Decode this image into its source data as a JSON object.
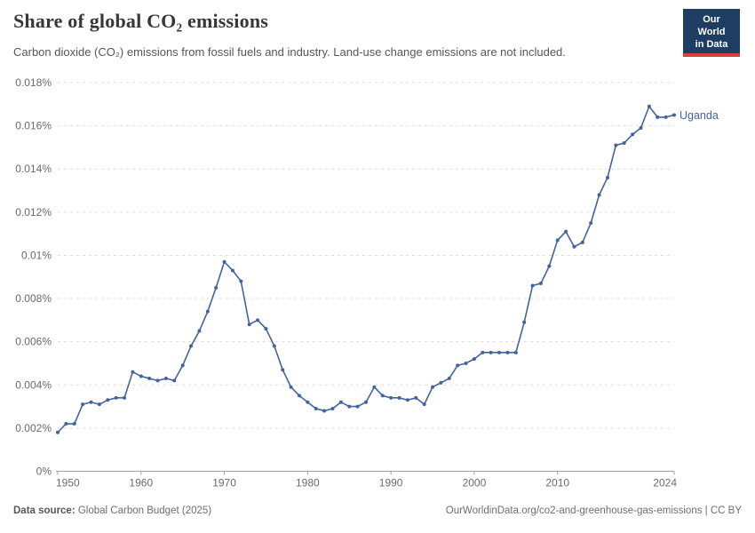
{
  "header": {
    "title": "Share of global CO₂ emissions",
    "subtitle": "Carbon dioxide (CO₂) emissions from fossil fuels and industry. Land-use change emissions are not included.",
    "logo": {
      "line1": "Our World",
      "line2": "in Data",
      "bg_color": "#1d3d63",
      "accent_color": "#d7413a"
    }
  },
  "footer": {
    "source_label": "Data source:",
    "source_value": " Global Carbon Budget (2025)",
    "link_text": "OurWorldinData.org/co2-and-greenhouse-gas-emissions | CC BY"
  },
  "colors": {
    "series_blue": "#44639E",
    "gridline": "#dcdcdc",
    "axis": "#a1a1a1",
    "tick_label": "#6b6b6b"
  },
  "chart_data": {
    "type": "line",
    "title": "Share of global CO₂ emissions",
    "xlabel": "",
    "ylabel": "",
    "xlim": [
      1950,
      2024
    ],
    "ylim": [
      0,
      0.018
    ],
    "grid": "horizontal-dashed",
    "legend": "end-of-line-label",
    "xticks": [
      1950,
      1960,
      1970,
      1980,
      1990,
      2000,
      2010,
      2024
    ],
    "yticks": [
      {
        "value": 0,
        "label": "0%"
      },
      {
        "value": 0.002,
        "label": "0.002%"
      },
      {
        "value": 0.004,
        "label": "0.004%"
      },
      {
        "value": 0.006,
        "label": "0.006%"
      },
      {
        "value": 0.008,
        "label": "0.008%"
      },
      {
        "value": 0.01,
        "label": "0.01%"
      },
      {
        "value": 0.012,
        "label": "0.012%"
      },
      {
        "value": 0.014,
        "label": "0.014%"
      },
      {
        "value": 0.016,
        "label": "0.016%"
      },
      {
        "value": 0.018,
        "label": "0.018%"
      }
    ],
    "series": [
      {
        "name": "Uganda",
        "color": "#44639E",
        "unit": "% of global CO₂ emissions",
        "x": [
          1950,
          1951,
          1952,
          1953,
          1954,
          1955,
          1956,
          1957,
          1958,
          1959,
          1960,
          1961,
          1962,
          1963,
          1964,
          1965,
          1966,
          1967,
          1968,
          1969,
          1970,
          1971,
          1972,
          1973,
          1974,
          1975,
          1976,
          1977,
          1978,
          1979,
          1980,
          1981,
          1982,
          1983,
          1984,
          1985,
          1986,
          1987,
          1988,
          1989,
          1990,
          1991,
          1992,
          1993,
          1994,
          1995,
          1996,
          1997,
          1998,
          1999,
          2000,
          2001,
          2002,
          2003,
          2004,
          2005,
          2006,
          2007,
          2008,
          2009,
          2010,
          2011,
          2012,
          2013,
          2014,
          2015,
          2016,
          2017,
          2018,
          2019,
          2020,
          2021,
          2022,
          2023,
          2024
        ],
        "values": [
          0.0018,
          0.0022,
          0.0022,
          0.0031,
          0.0032,
          0.0031,
          0.0033,
          0.0034,
          0.0034,
          0.0046,
          0.0044,
          0.0043,
          0.0042,
          0.0043,
          0.0042,
          0.0049,
          0.0058,
          0.0065,
          0.0074,
          0.0085,
          0.0097,
          0.0093,
          0.0088,
          0.0068,
          0.007,
          0.0066,
          0.0058,
          0.0047,
          0.0039,
          0.0035,
          0.0032,
          0.0029,
          0.0028,
          0.0029,
          0.0032,
          0.003,
          0.003,
          0.0032,
          0.0039,
          0.0035,
          0.0034,
          0.0034,
          0.0033,
          0.0034,
          0.0031,
          0.0039,
          0.0041,
          0.0043,
          0.0049,
          0.005,
          0.0052,
          0.0055,
          0.0055,
          0.0055,
          0.0055,
          0.0055,
          0.0069,
          0.0086,
          0.0087,
          0.0095,
          0.0107,
          0.0111,
          0.0104,
          0.0106,
          0.0115,
          0.0128,
          0.0136,
          0.0151,
          0.0152,
          0.0156,
          0.0159,
          0.0169,
          0.0164,
          0.0164,
          0.0165
        ]
      }
    ]
  }
}
